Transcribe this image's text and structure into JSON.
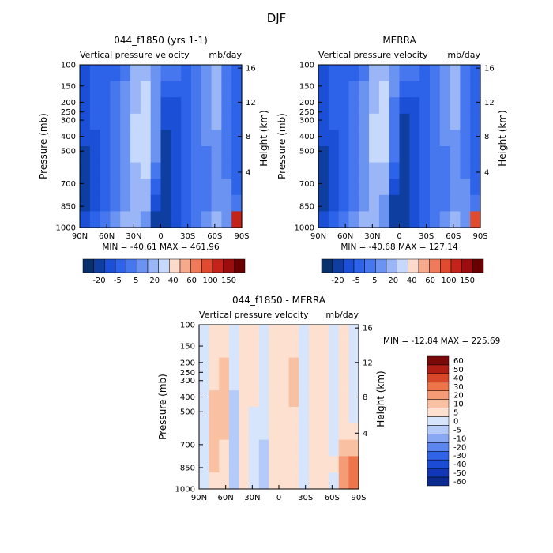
{
  "figure": {
    "title": "DJF"
  },
  "colors": {
    "panel_palette": [
      "#08306b",
      "#0d3ea0",
      "#1a4fd6",
      "#2d63e8",
      "#4677ee",
      "#6b93f2",
      "#9ab6f6",
      "#c6d8fb",
      "#fbdacb",
      "#f7a98c",
      "#f07a5a",
      "#e04a2e",
      "#c4231a",
      "#9e0d0d",
      "#6b0000"
    ],
    "diff_palette": [
      "#0b2a8f",
      "#1237b6",
      "#1c4bd6",
      "#3163e6",
      "#5b85ef",
      "#88a8f4",
      "#b4caf8",
      "#d6e4fc",
      "#fde0cf",
      "#f9c0a2",
      "#f59b76",
      "#ee7449",
      "#d84828",
      "#b01e14",
      "#7a0909"
    ]
  },
  "chart_data": [
    {
      "type": "heatmap",
      "title": "044_f1850 (yrs 1-1)",
      "subtitle_left": "Vertical pressure velocity",
      "subtitle_right": "mb/day",
      "ylabel": "Pressure (mb)",
      "ylabel_right": "Height (km)",
      "x_ticks": [
        "90N",
        "60N",
        "30N",
        "0",
        "30S",
        "60S",
        "90S"
      ],
      "y_ticks": [
        "100",
        "150",
        "200",
        "250",
        "300",
        "400",
        "500",
        "700",
        "850",
        "1000"
      ],
      "y_ticks_right": [
        "16",
        "12",
        "8",
        "4"
      ],
      "stats": "MIN = -40.61   MAX = 461.96",
      "colorbar_labels": [
        "-20",
        "-5",
        "5",
        "20",
        "40",
        "60",
        "100",
        "150"
      ],
      "field": [
        [
          2,
          3,
          3,
          3,
          4,
          6,
          6,
          5,
          4,
          4,
          3,
          4,
          5,
          6,
          4,
          3
        ],
        [
          2,
          3,
          3,
          4,
          5,
          6,
          7,
          5,
          3,
          3,
          3,
          4,
          5,
          6,
          4,
          3
        ],
        [
          2,
          3,
          3,
          4,
          5,
          6,
          7,
          5,
          2,
          2,
          3,
          4,
          5,
          6,
          4,
          3
        ],
        [
          2,
          3,
          3,
          4,
          5,
          7,
          7,
          5,
          2,
          2,
          3,
          4,
          5,
          6,
          4,
          3
        ],
        [
          2,
          2,
          3,
          4,
          5,
          7,
          7,
          5,
          1,
          2,
          3,
          4,
          5,
          5,
          4,
          3
        ],
        [
          1,
          2,
          3,
          4,
          5,
          7,
          7,
          5,
          1,
          2,
          3,
          4,
          4,
          5,
          4,
          3
        ],
        [
          1,
          2,
          3,
          4,
          5,
          6,
          7,
          4,
          1,
          2,
          3,
          4,
          4,
          5,
          4,
          3
        ],
        [
          1,
          2,
          3,
          4,
          5,
          6,
          6,
          3,
          1,
          2,
          3,
          4,
          4,
          5,
          5,
          3
        ],
        [
          1,
          2,
          3,
          4,
          5,
          6,
          6,
          2,
          1,
          2,
          3,
          4,
          4,
          5,
          5,
          4
        ],
        [
          2,
          3,
          4,
          5,
          6,
          6,
          5,
          1,
          1,
          2,
          3,
          4,
          5,
          6,
          5,
          12
        ]
      ]
    },
    {
      "type": "heatmap",
      "title": "MERRA",
      "subtitle_left": "Vertical pressure velocity",
      "subtitle_right": "mb/day",
      "ylabel": "Pressure (mb)",
      "ylabel_right": "Height (km)",
      "x_ticks": [
        "90N",
        "60N",
        "30N",
        "0",
        "30S",
        "60S",
        "90S"
      ],
      "y_ticks": [
        "100",
        "150",
        "200",
        "250",
        "300",
        "400",
        "500",
        "700",
        "850",
        "1000"
      ],
      "y_ticks_right": [
        "16",
        "12",
        "8",
        "4"
      ],
      "stats": "MIN = -40.68   MAX = 127.14",
      "colorbar_labels": [
        "-20",
        "-5",
        "5",
        "20",
        "40",
        "60",
        "100",
        "150"
      ],
      "field": [
        [
          2,
          3,
          3,
          3,
          4,
          6,
          6,
          5,
          4,
          4,
          3,
          4,
          5,
          6,
          4,
          3
        ],
        [
          2,
          3,
          3,
          4,
          5,
          6,
          7,
          5,
          3,
          3,
          3,
          4,
          5,
          6,
          4,
          3
        ],
        [
          2,
          3,
          3,
          4,
          5,
          6,
          7,
          4,
          2,
          2,
          3,
          4,
          5,
          6,
          4,
          3
        ],
        [
          2,
          3,
          3,
          4,
          5,
          7,
          7,
          4,
          1,
          2,
          3,
          4,
          5,
          6,
          4,
          3
        ],
        [
          2,
          2,
          3,
          4,
          5,
          7,
          7,
          4,
          1,
          2,
          3,
          4,
          5,
          5,
          4,
          3
        ],
        [
          1,
          2,
          3,
          4,
          5,
          7,
          7,
          4,
          1,
          2,
          3,
          4,
          4,
          5,
          4,
          3
        ],
        [
          1,
          2,
          3,
          4,
          5,
          6,
          6,
          3,
          1,
          2,
          3,
          4,
          4,
          5,
          4,
          3
        ],
        [
          1,
          2,
          3,
          4,
          5,
          6,
          6,
          2,
          1,
          2,
          3,
          4,
          4,
          5,
          5,
          3
        ],
        [
          1,
          2,
          3,
          4,
          5,
          6,
          5,
          1,
          1,
          2,
          3,
          4,
          4,
          5,
          5,
          4
        ],
        [
          2,
          3,
          4,
          5,
          6,
          6,
          5,
          1,
          1,
          2,
          3,
          4,
          5,
          6,
          5,
          11
        ]
      ]
    },
    {
      "type": "heatmap",
      "title": "044_f1850 - MERRA",
      "subtitle_left": "Vertical pressure velocity",
      "subtitle_right": "mb/day",
      "ylabel": "Pressure (mb)",
      "ylabel_right": "Height (km)",
      "x_ticks": [
        "90N",
        "60N",
        "30N",
        "0",
        "30S",
        "60S",
        "90S"
      ],
      "y_ticks": [
        "100",
        "150",
        "200",
        "250",
        "300",
        "400",
        "500",
        "700",
        "850",
        "1000"
      ],
      "y_ticks_right": [
        "16",
        "12",
        "8",
        "4"
      ],
      "stats": "MIN = -12.84   MAX = 225.69",
      "colorbar_labels": [
        "60",
        "50",
        "40",
        "30",
        "20",
        "10",
        "5",
        "0",
        "-5",
        "-10",
        "-20",
        "-30",
        "-40",
        "-50",
        "-60"
      ],
      "field": [
        [
          7,
          8,
          8,
          7,
          8,
          8,
          7,
          8,
          8,
          8,
          7,
          8,
          8,
          7,
          8,
          7
        ],
        [
          7,
          8,
          8,
          7,
          8,
          8,
          7,
          8,
          8,
          8,
          7,
          8,
          8,
          7,
          8,
          7
        ],
        [
          7,
          8,
          9,
          7,
          8,
          8,
          7,
          8,
          8,
          9,
          7,
          8,
          8,
          7,
          8,
          7
        ],
        [
          7,
          8,
          9,
          7,
          8,
          8,
          7,
          8,
          8,
          9,
          7,
          8,
          8,
          7,
          8,
          7
        ],
        [
          7,
          9,
          9,
          6,
          8,
          8,
          7,
          8,
          8,
          9,
          7,
          8,
          8,
          7,
          8,
          7
        ],
        [
          7,
          9,
          9,
          6,
          8,
          7,
          7,
          8,
          8,
          8,
          7,
          8,
          8,
          7,
          8,
          7
        ],
        [
          7,
          9,
          9,
          6,
          8,
          7,
          7,
          8,
          8,
          8,
          7,
          8,
          8,
          7,
          8,
          8
        ],
        [
          7,
          9,
          8,
          6,
          8,
          7,
          6,
          8,
          8,
          8,
          7,
          8,
          8,
          7,
          9,
          9
        ],
        [
          7,
          9,
          8,
          6,
          8,
          7,
          6,
          8,
          8,
          8,
          7,
          8,
          8,
          8,
          10,
          11
        ],
        [
          7,
          8,
          8,
          6,
          8,
          7,
          6,
          8,
          8,
          8,
          7,
          8,
          8,
          7,
          10,
          11
        ]
      ]
    }
  ]
}
